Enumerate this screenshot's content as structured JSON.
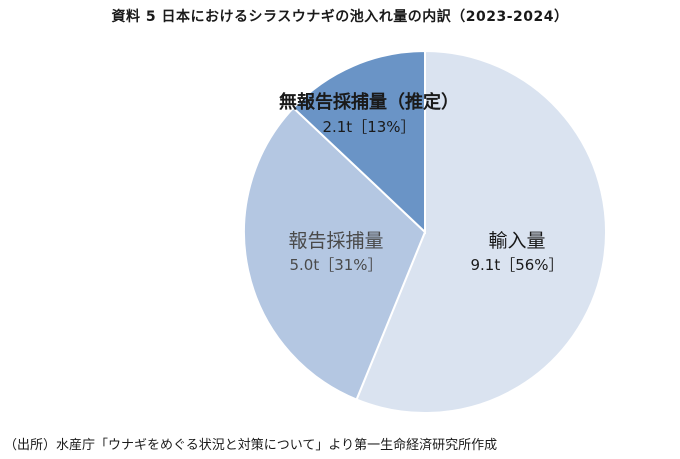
{
  "chart_data": {
    "type": "pie",
    "title": "資料 5  日本におけるシラスウナギの池入れ量の内訳（2023-2024）",
    "slices": [
      {
        "label": "輸入量",
        "value": 9.1,
        "value_text": "9.1t［56%］",
        "color": "#dae3f0"
      },
      {
        "label": "報告採捕量",
        "value": 5.0,
        "value_text": "5.0t［31%］",
        "color": "#b4c7e2"
      },
      {
        "label": "無報告採捕量（推定）",
        "value": 2.1,
        "value_text": "2.1t［13%］",
        "color": "#6a94c6"
      }
    ],
    "legend": "none"
  },
  "source": "（出所）水産庁「ウナギをめぐる状況と対策について」より第一生命経済研究所作成"
}
